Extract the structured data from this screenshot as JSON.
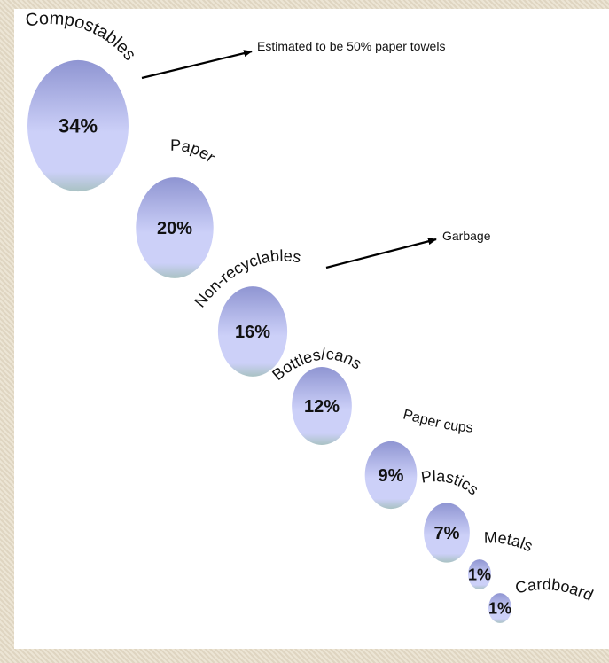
{
  "chart_data": {
    "type": "bubble",
    "title": "",
    "series": [
      {
        "categories": [
          "Compostables",
          "Paper",
          "Non-recyclables",
          "Bottles/cans",
          "Paper cups",
          "Plastics",
          "Metals",
          "Cardboard"
        ],
        "values": [
          34,
          20,
          16,
          12,
          9,
          7,
          1,
          1
        ],
        "value_labels": [
          "34%",
          "20%",
          "16%",
          "12%",
          "9%",
          "7%",
          "1%",
          "1%"
        ]
      }
    ],
    "annotations": [
      {
        "target": "Compostables",
        "text": "Estimated to be 50% paper towels"
      },
      {
        "target": "Non-recyclables",
        "text": "Garbage"
      }
    ],
    "colors": {
      "bubble_top": "#8f95d2",
      "bubble_mid": "#ccd0f8",
      "bubble_bottom": "#a9c2c3"
    }
  }
}
